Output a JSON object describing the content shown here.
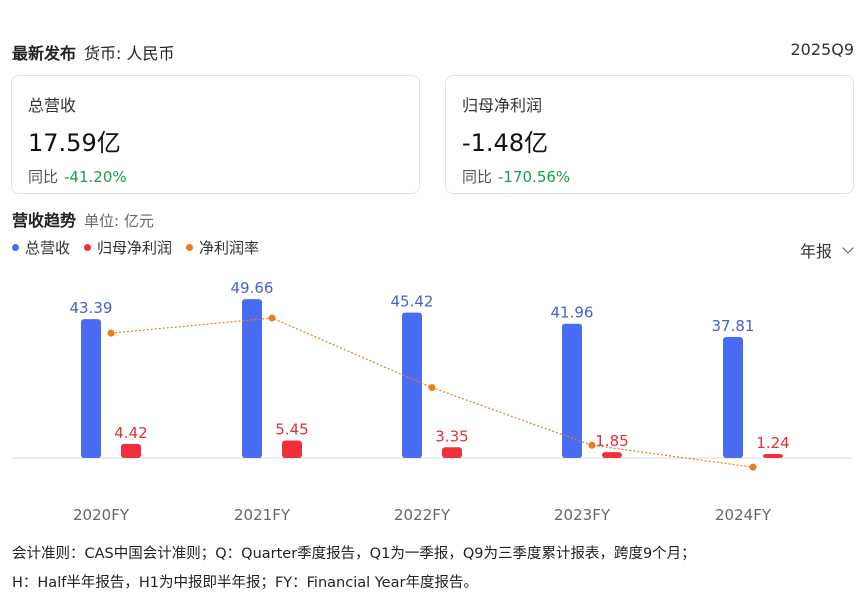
{
  "header": {
    "title": "最新发布",
    "currency": "货币: 人民币",
    "period": "2025Q9"
  },
  "cards": [
    {
      "label": "总营收",
      "value": "17.59亿",
      "yoy_label": "同比",
      "yoy_value": "-41.20%"
    },
    {
      "label": "归母净利润",
      "value": "-1.48亿",
      "yoy_label": "同比",
      "yoy_value": "-170.56%"
    }
  ],
  "trend": {
    "title": "营收趋势",
    "unit": "单位: 亿元",
    "period_select": "年报"
  },
  "colors": {
    "revenue": "#4a6cf2",
    "net_profit": "#f0313d",
    "margin": "#f27a1a",
    "yoy_positive_text": "#1a9a55"
  },
  "chart_data": {
    "type": "bar",
    "categories": [
      "2020FY",
      "2021FY",
      "2022FY",
      "2023FY",
      "2024FY"
    ],
    "series": [
      {
        "name": "总营收",
        "values": [
          43.39,
          49.66,
          45.42,
          41.96,
          37.81
        ],
        "value_labels": [
          "43.39",
          "49.66",
          "45.42",
          "41.96",
          "37.81"
        ]
      },
      {
        "name": "归母净利润",
        "values": [
          4.42,
          5.45,
          3.35,
          1.85,
          1.24
        ],
        "value_labels": [
          "4.42",
          "5.45",
          "3.35",
          "1.85",
          "1.24"
        ]
      },
      {
        "name": "净利润率",
        "type": "line",
        "values": [
          10.19,
          10.97,
          7.38,
          4.41,
          3.28
        ]
      }
    ]
  },
  "footnote": [
    "会计准则：CAS中国会计准则；Q：Quarter季度报告，Q1为一季报，Q9为三季度累计报表，跨度9个月；",
    "H：Half半年报告，H1为中报即半年报；FY：Financial Year年度报告。"
  ]
}
